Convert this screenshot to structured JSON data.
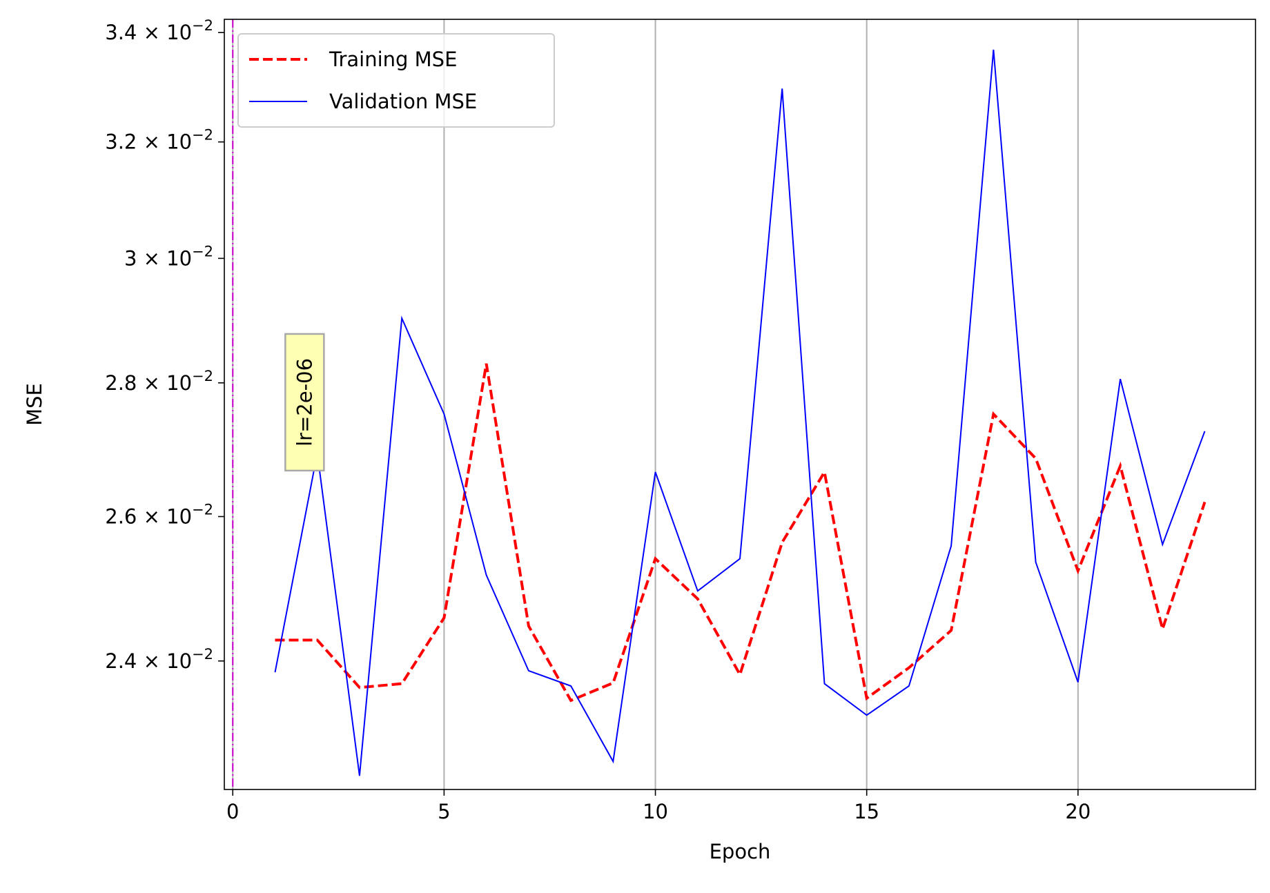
{
  "chart_data": {
    "type": "line",
    "xlabel": "Epoch",
    "ylabel": "MSE",
    "xlim": [
      -0.2,
      24.2
    ],
    "ylim": [
      0.02235,
      0.03425
    ],
    "yscale": "log",
    "grid": {
      "x": true,
      "y": false
    },
    "legend_position": "top-left",
    "x_ticks": [
      0,
      5,
      10,
      15,
      20
    ],
    "y_ticks": [
      {
        "value": 0.024,
        "mantissa": "2.4"
      },
      {
        "value": 0.026,
        "mantissa": "2.6"
      },
      {
        "value": 0.028,
        "mantissa": "2.8"
      },
      {
        "value": 0.03,
        "mantissa": "3"
      },
      {
        "value": 0.032,
        "mantissa": "3.2"
      },
      {
        "value": 0.034,
        "mantissa": "3.4"
      }
    ],
    "tick_multiplier": "× 10",
    "tick_exponent": "−2",
    "series": [
      {
        "name": "Training MSE",
        "color": "#ff0000",
        "style": "dashed",
        "x": [
          1,
          2,
          3,
          4,
          5,
          6,
          7,
          8,
          9,
          10,
          11,
          12,
          13,
          14,
          15,
          16,
          17,
          18,
          19,
          20,
          21,
          22,
          23
        ],
        "y": [
          0.02428,
          0.02428,
          0.02365,
          0.0237,
          0.02458,
          0.0283,
          0.02447,
          0.02348,
          0.02371,
          0.0254,
          0.02484,
          0.02382,
          0.02563,
          0.02665,
          0.02351,
          0.02391,
          0.02441,
          0.02752,
          0.02685,
          0.02523,
          0.02674,
          0.02443,
          0.02621
        ]
      },
      {
        "name": "Validation MSE",
        "color": "#0000ff",
        "style": "solid",
        "x": [
          1,
          2,
          3,
          4,
          5,
          6,
          7,
          8,
          9,
          10,
          11,
          12,
          13,
          14,
          15,
          16,
          17,
          18,
          19,
          20,
          21,
          22,
          23
        ],
        "y": [
          0.02385,
          0.02693,
          0.02252,
          0.02902,
          0.02752,
          0.02517,
          0.02387,
          0.02367,
          0.0227,
          0.02665,
          0.02495,
          0.0254,
          0.03296,
          0.0237,
          0.02329,
          0.02367,
          0.02558,
          0.03368,
          0.02535,
          0.02372,
          0.02806,
          0.0256,
          0.02726
        ]
      }
    ],
    "vline": {
      "x": 0,
      "color": "#cc00cc",
      "style": "dashdot"
    },
    "annotation": {
      "text": "lr=2e-06",
      "x": 1.7,
      "y": 0.0277,
      "rotation": -90,
      "background": "#ffffb3"
    }
  }
}
